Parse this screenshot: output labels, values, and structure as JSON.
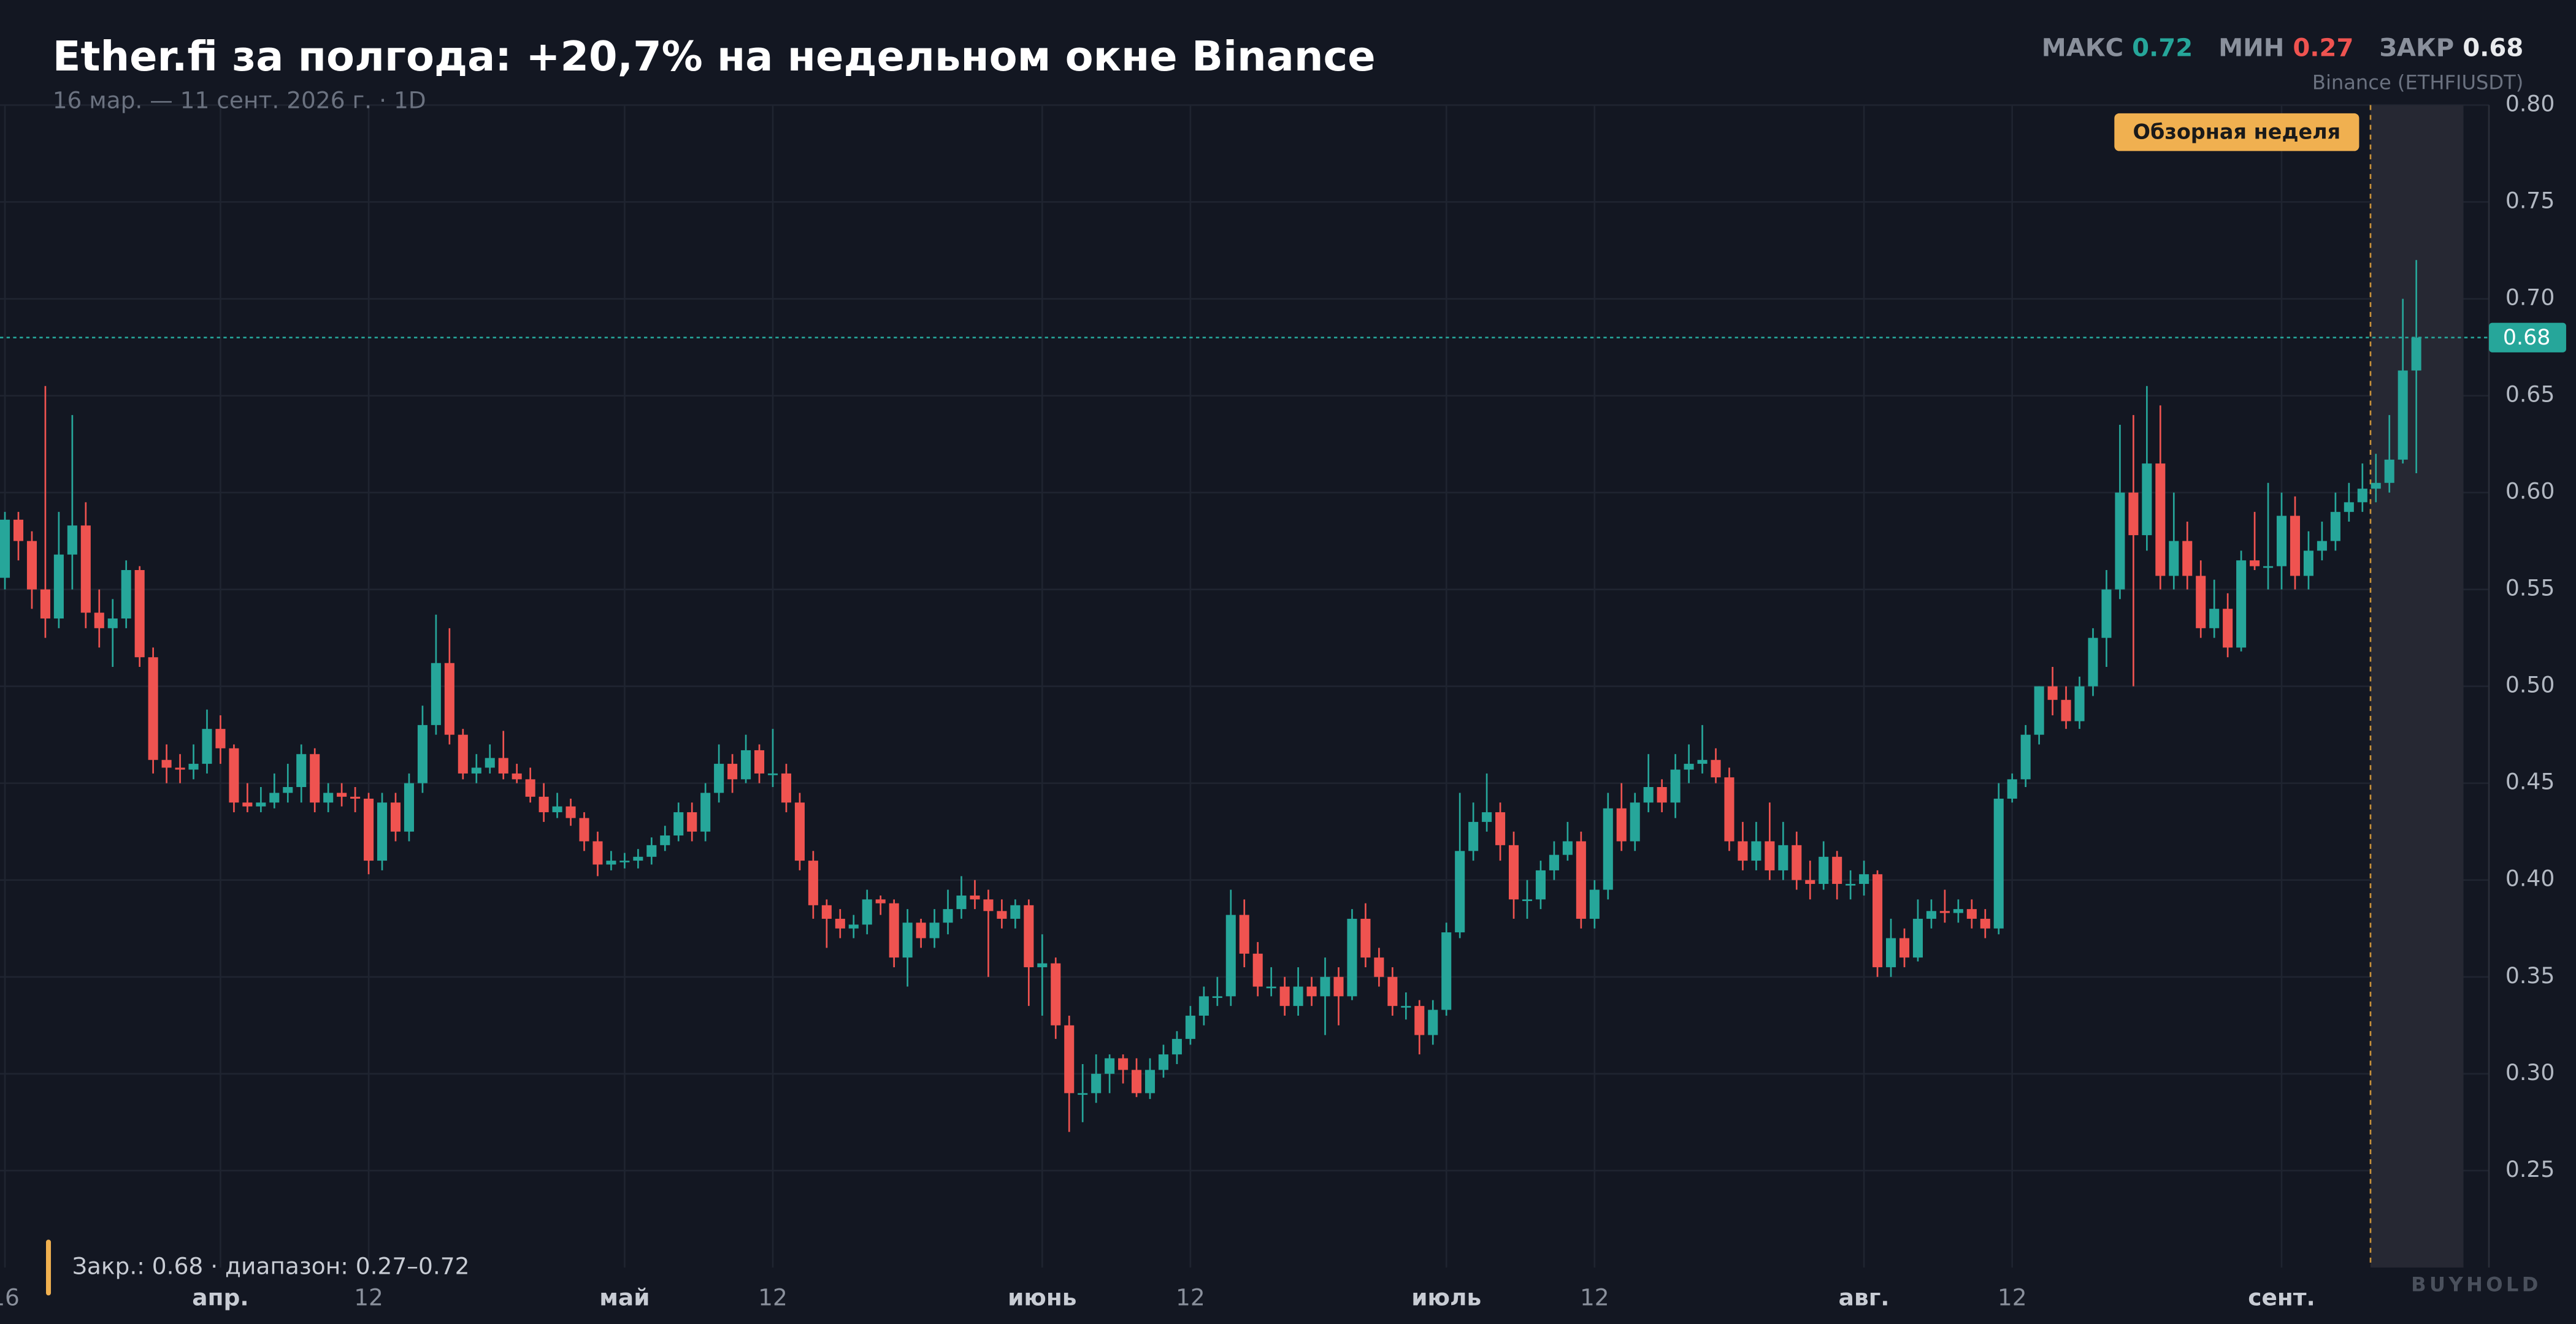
{
  "chart_data": {
    "type": "candlestick",
    "title": "Ether.fi за полгода: +20,7% на недельном окне Binance",
    "subtitle": "16 мар. — 11 сент. 2026 г. · 1D",
    "stats": [
      {
        "label": "МАКС",
        "value": 0.72,
        "color": "#26a69a"
      },
      {
        "label": "МИН",
        "value": 0.27,
        "color": "#ef5350"
      },
      {
        "label": "ЗАКР",
        "value": 0.68,
        "color": "#e8eaed"
      }
    ],
    "source": "Binance (ETHFIUSDT)",
    "highlight_label": "Обзорная неделя",
    "last_price": 0.68,
    "footer": "Закр.: 0.68 · диапазон: 0.27–0.72",
    "watermark": "BUYHOLD",
    "up_color": "#26a69a",
    "down_color": "#ef5350",
    "grid": true,
    "ylim": [
      0.2,
      0.8
    ],
    "yticks": [
      0.25,
      {
        "value": 0.3,
        "label": "0.30"
      },
      0.35,
      {
        "value": 0.4,
        "label": "0.40"
      },
      0.45,
      {
        "value": 0.5,
        "label": "0.50"
      },
      0.55,
      {
        "value": 0.6,
        "label": "0.60"
      },
      0.65,
      {
        "value": 0.7,
        "label": "0.70"
      },
      0.75,
      {
        "value": 0.8,
        "label": "0.80"
      }
    ],
    "categories": [
      "16",
      null,
      null,
      null,
      null,
      null,
      null,
      null,
      null,
      null,
      null,
      null,
      null,
      null,
      null,
      null,
      "апр.",
      null,
      null,
      null,
      null,
      null,
      null,
      null,
      null,
      null,
      null,
      "12",
      null,
      null,
      null,
      null,
      null,
      null,
      null,
      null,
      null,
      null,
      null,
      null,
      null,
      null,
      null,
      null,
      null,
      null,
      "май",
      null,
      null,
      null,
      null,
      null,
      null,
      null,
      null,
      null,
      null,
      "12",
      null,
      null,
      null,
      null,
      null,
      null,
      null,
      null,
      null,
      null,
      null,
      null,
      null,
      null,
      null,
      null,
      null,
      null,
      null,
      "июнь",
      null,
      null,
      null,
      null,
      null,
      null,
      null,
      null,
      null,
      null,
      "12",
      null,
      null,
      null,
      null,
      null,
      null,
      null,
      null,
      null,
      null,
      null,
      null,
      null,
      null,
      null,
      null,
      null,
      null,
      "июль",
      null,
      null,
      null,
      null,
      null,
      null,
      null,
      null,
      null,
      null,
      "12",
      null,
      null,
      null,
      null,
      null,
      null,
      null,
      null,
      null,
      null,
      null,
      null,
      null,
      null,
      null,
      null,
      null,
      null,
      null,
      "авг.",
      null,
      null,
      null,
      null,
      null,
      null,
      null,
      null,
      null,
      null,
      "12",
      null,
      null,
      null,
      null,
      null,
      null,
      null,
      null,
      null,
      null,
      null,
      null,
      null,
      null,
      null,
      null,
      null,
      null,
      null,
      "сент.",
      null,
      null,
      null,
      null,
      null,
      null,
      null,
      null,
      null,
      null
    ],
    "ohlc": [
      [
        0.556,
        0.59,
        0.55,
        0.586
      ],
      [
        0.586,
        0.59,
        0.565,
        0.575
      ],
      [
        0.575,
        0.58,
        0.54,
        0.55
      ],
      [
        0.55,
        0.655,
        0.525,
        0.535
      ],
      [
        0.535,
        0.59,
        0.53,
        0.568
      ],
      [
        0.568,
        0.64,
        0.55,
        0.583
      ],
      [
        0.583,
        0.595,
        0.53,
        0.538
      ],
      [
        0.538,
        0.55,
        0.52,
        0.53
      ],
      [
        0.53,
        0.545,
        0.51,
        0.535
      ],
      [
        0.535,
        0.565,
        0.53,
        0.56
      ],
      [
        0.56,
        0.562,
        0.51,
        0.515
      ],
      [
        0.515,
        0.52,
        0.455,
        0.462
      ],
      [
        0.462,
        0.47,
        0.45,
        0.458
      ],
      [
        0.458,
        0.465,
        0.45,
        0.457
      ],
      [
        0.457,
        0.47,
        0.452,
        0.46
      ],
      [
        0.46,
        0.488,
        0.455,
        0.478
      ],
      [
        0.478,
        0.485,
        0.46,
        0.468
      ],
      [
        0.468,
        0.47,
        0.435,
        0.44
      ],
      [
        0.44,
        0.45,
        0.435,
        0.438
      ],
      [
        0.438,
        0.448,
        0.435,
        0.44
      ],
      [
        0.44,
        0.455,
        0.437,
        0.445
      ],
      [
        0.445,
        0.46,
        0.44,
        0.448
      ],
      [
        0.448,
        0.47,
        0.44,
        0.465
      ],
      [
        0.465,
        0.468,
        0.435,
        0.44
      ],
      [
        0.44,
        0.45,
        0.435,
        0.445
      ],
      [
        0.445,
        0.45,
        0.438,
        0.443
      ],
      [
        0.443,
        0.448,
        0.435,
        0.442
      ],
      [
        0.442,
        0.445,
        0.403,
        0.41
      ],
      [
        0.41,
        0.445,
        0.405,
        0.44
      ],
      [
        0.44,
        0.445,
        0.42,
        0.425
      ],
      [
        0.425,
        0.455,
        0.42,
        0.45
      ],
      [
        0.45,
        0.49,
        0.445,
        0.48
      ],
      [
        0.48,
        0.537,
        0.475,
        0.512
      ],
      [
        0.512,
        0.53,
        0.47,
        0.475
      ],
      [
        0.475,
        0.478,
        0.452,
        0.455
      ],
      [
        0.455,
        0.465,
        0.45,
        0.458
      ],
      [
        0.458,
        0.47,
        0.455,
        0.463
      ],
      [
        0.463,
        0.477,
        0.452,
        0.455
      ],
      [
        0.455,
        0.46,
        0.45,
        0.452
      ],
      [
        0.452,
        0.458,
        0.44,
        0.443
      ],
      [
        0.443,
        0.45,
        0.43,
        0.435
      ],
      [
        0.435,
        0.445,
        0.432,
        0.438
      ],
      [
        0.438,
        0.442,
        0.428,
        0.432
      ],
      [
        0.432,
        0.435,
        0.415,
        0.42
      ],
      [
        0.42,
        0.425,
        0.402,
        0.408
      ],
      [
        0.408,
        0.415,
        0.405,
        0.41
      ],
      [
        0.41,
        0.414,
        0.406,
        0.41
      ],
      [
        0.41,
        0.416,
        0.406,
        0.412
      ],
      [
        0.412,
        0.422,
        0.408,
        0.418
      ],
      [
        0.418,
        0.428,
        0.415,
        0.423
      ],
      [
        0.423,
        0.44,
        0.42,
        0.435
      ],
      [
        0.435,
        0.44,
        0.42,
        0.425
      ],
      [
        0.425,
        0.45,
        0.42,
        0.445
      ],
      [
        0.445,
        0.47,
        0.44,
        0.46
      ],
      [
        0.46,
        0.465,
        0.445,
        0.452
      ],
      [
        0.452,
        0.475,
        0.45,
        0.467
      ],
      [
        0.467,
        0.47,
        0.45,
        0.455
      ],
      [
        0.455,
        0.478,
        0.448,
        0.455
      ],
      [
        0.455,
        0.46,
        0.435,
        0.44
      ],
      [
        0.44,
        0.445,
        0.405,
        0.41
      ],
      [
        0.41,
        0.415,
        0.38,
        0.387
      ],
      [
        0.387,
        0.39,
        0.365,
        0.38
      ],
      [
        0.38,
        0.385,
        0.37,
        0.375
      ],
      [
        0.375,
        0.382,
        0.37,
        0.377
      ],
      [
        0.377,
        0.395,
        0.372,
        0.39
      ],
      [
        0.39,
        0.392,
        0.382,
        0.388
      ],
      [
        0.388,
        0.39,
        0.355,
        0.36
      ],
      [
        0.36,
        0.385,
        0.345,
        0.378
      ],
      [
        0.378,
        0.38,
        0.365,
        0.37
      ],
      [
        0.37,
        0.385,
        0.365,
        0.378
      ],
      [
        0.378,
        0.395,
        0.372,
        0.385
      ],
      [
        0.385,
        0.402,
        0.38,
        0.392
      ],
      [
        0.392,
        0.4,
        0.385,
        0.39
      ],
      [
        0.39,
        0.395,
        0.35,
        0.384
      ],
      [
        0.384,
        0.39,
        0.375,
        0.38
      ],
      [
        0.38,
        0.39,
        0.375,
        0.387
      ],
      [
        0.387,
        0.39,
        0.335,
        0.355
      ],
      [
        0.355,
        0.372,
        0.33,
        0.357
      ],
      [
        0.357,
        0.36,
        0.318,
        0.325
      ],
      [
        0.325,
        0.33,
        0.27,
        0.29
      ],
      [
        0.29,
        0.305,
        0.275,
        0.29
      ],
      [
        0.29,
        0.31,
        0.285,
        0.3
      ],
      [
        0.3,
        0.31,
        0.29,
        0.308
      ],
      [
        0.308,
        0.31,
        0.295,
        0.302
      ],
      [
        0.302,
        0.308,
        0.288,
        0.29
      ],
      [
        0.29,
        0.308,
        0.287,
        0.302
      ],
      [
        0.302,
        0.315,
        0.298,
        0.31
      ],
      [
        0.31,
        0.322,
        0.305,
        0.318
      ],
      [
        0.318,
        0.335,
        0.315,
        0.33
      ],
      [
        0.33,
        0.345,
        0.325,
        0.34
      ],
      [
        0.34,
        0.35,
        0.335,
        0.34
      ],
      [
        0.34,
        0.395,
        0.335,
        0.382
      ],
      [
        0.382,
        0.39,
        0.355,
        0.362
      ],
      [
        0.362,
        0.368,
        0.34,
        0.345
      ],
      [
        0.345,
        0.355,
        0.34,
        0.345
      ],
      [
        0.345,
        0.35,
        0.33,
        0.335
      ],
      [
        0.335,
        0.355,
        0.33,
        0.345
      ],
      [
        0.345,
        0.35,
        0.335,
        0.34
      ],
      [
        0.34,
        0.36,
        0.32,
        0.35
      ],
      [
        0.35,
        0.355,
        0.325,
        0.34
      ],
      [
        0.34,
        0.385,
        0.338,
        0.38
      ],
      [
        0.38,
        0.388,
        0.355,
        0.36
      ],
      [
        0.36,
        0.365,
        0.345,
        0.35
      ],
      [
        0.35,
        0.355,
        0.33,
        0.335
      ],
      [
        0.335,
        0.342,
        0.328,
        0.335
      ],
      [
        0.335,
        0.338,
        0.31,
        0.32
      ],
      [
        0.32,
        0.338,
        0.315,
        0.333
      ],
      [
        0.333,
        0.378,
        0.33,
        0.373
      ],
      [
        0.373,
        0.445,
        0.37,
        0.415
      ],
      [
        0.415,
        0.44,
        0.41,
        0.43
      ],
      [
        0.43,
        0.455,
        0.425,
        0.435
      ],
      [
        0.435,
        0.44,
        0.41,
        0.418
      ],
      [
        0.418,
        0.425,
        0.38,
        0.39
      ],
      [
        0.39,
        0.4,
        0.38,
        0.39
      ],
      [
        0.39,
        0.41,
        0.385,
        0.405
      ],
      [
        0.405,
        0.42,
        0.4,
        0.413
      ],
      [
        0.413,
        0.43,
        0.41,
        0.42
      ],
      [
        0.42,
        0.425,
        0.375,
        0.38
      ],
      [
        0.38,
        0.4,
        0.375,
        0.395
      ],
      [
        0.395,
        0.445,
        0.39,
        0.437
      ],
      [
        0.437,
        0.45,
        0.415,
        0.42
      ],
      [
        0.42,
        0.445,
        0.415,
        0.44
      ],
      [
        0.44,
        0.465,
        0.435,
        0.448
      ],
      [
        0.448,
        0.452,
        0.435,
        0.44
      ],
      [
        0.44,
        0.465,
        0.432,
        0.457
      ],
      [
        0.457,
        0.47,
        0.45,
        0.46
      ],
      [
        0.46,
        0.48,
        0.455,
        0.462
      ],
      [
        0.462,
        0.468,
        0.45,
        0.453
      ],
      [
        0.453,
        0.458,
        0.415,
        0.42
      ],
      [
        0.42,
        0.43,
        0.405,
        0.41
      ],
      [
        0.41,
        0.43,
        0.405,
        0.42
      ],
      [
        0.42,
        0.44,
        0.4,
        0.405
      ],
      [
        0.405,
        0.43,
        0.4,
        0.418
      ],
      [
        0.418,
        0.425,
        0.395,
        0.4
      ],
      [
        0.4,
        0.41,
        0.39,
        0.398
      ],
      [
        0.398,
        0.42,
        0.395,
        0.412
      ],
      [
        0.412,
        0.415,
        0.39,
        0.398
      ],
      [
        0.398,
        0.405,
        0.39,
        0.398
      ],
      [
        0.398,
        0.41,
        0.392,
        0.403
      ],
      [
        0.403,
        0.405,
        0.35,
        0.355
      ],
      [
        0.355,
        0.38,
        0.35,
        0.37
      ],
      [
        0.37,
        0.375,
        0.355,
        0.36
      ],
      [
        0.36,
        0.39,
        0.358,
        0.38
      ],
      [
        0.38,
        0.39,
        0.375,
        0.384
      ],
      [
        0.384,
        0.395,
        0.378,
        0.383
      ],
      [
        0.383,
        0.39,
        0.378,
        0.385
      ],
      [
        0.385,
        0.39,
        0.375,
        0.38
      ],
      [
        0.38,
        0.385,
        0.37,
        0.375
      ],
      [
        0.375,
        0.45,
        0.372,
        0.442
      ],
      [
        0.442,
        0.455,
        0.44,
        0.452
      ],
      [
        0.452,
        0.48,
        0.448,
        0.475
      ],
      [
        0.475,
        0.5,
        0.47,
        0.5
      ],
      [
        0.5,
        0.51,
        0.485,
        0.493
      ],
      [
        0.493,
        0.5,
        0.478,
        0.482
      ],
      [
        0.482,
        0.505,
        0.478,
        0.5
      ],
      [
        0.5,
        0.53,
        0.495,
        0.525
      ],
      [
        0.525,
        0.56,
        0.51,
        0.55
      ],
      [
        0.55,
        0.635,
        0.545,
        0.6
      ],
      [
        0.6,
        0.64,
        0.5,
        0.578
      ],
      [
        0.578,
        0.655,
        0.57,
        0.615
      ],
      [
        0.615,
        0.645,
        0.55,
        0.557
      ],
      [
        0.557,
        0.6,
        0.55,
        0.575
      ],
      [
        0.575,
        0.585,
        0.55,
        0.557
      ],
      [
        0.557,
        0.565,
        0.525,
        0.53
      ],
      [
        0.53,
        0.555,
        0.525,
        0.54
      ],
      [
        0.54,
        0.548,
        0.515,
        0.52
      ],
      [
        0.52,
        0.57,
        0.518,
        0.565
      ],
      [
        0.565,
        0.59,
        0.56,
        0.562
      ],
      [
        0.562,
        0.605,
        0.55,
        0.562
      ],
      [
        0.562,
        0.6,
        0.55,
        0.588
      ],
      [
        0.588,
        0.598,
        0.55,
        0.557
      ],
      [
        0.557,
        0.58,
        0.55,
        0.57
      ],
      [
        0.57,
        0.585,
        0.565,
        0.575
      ],
      [
        0.575,
        0.6,
        0.57,
        0.59
      ],
      [
        0.59,
        0.605,
        0.585,
        0.595
      ],
      [
        0.595,
        0.615,
        0.59,
        0.602
      ],
      [
        0.602,
        0.62,
        0.595,
        0.605
      ],
      [
        0.605,
        0.64,
        0.6,
        0.617
      ],
      [
        0.617,
        0.7,
        0.615,
        0.663
      ],
      [
        0.663,
        0.72,
        0.61,
        0.68
      ]
    ]
  }
}
